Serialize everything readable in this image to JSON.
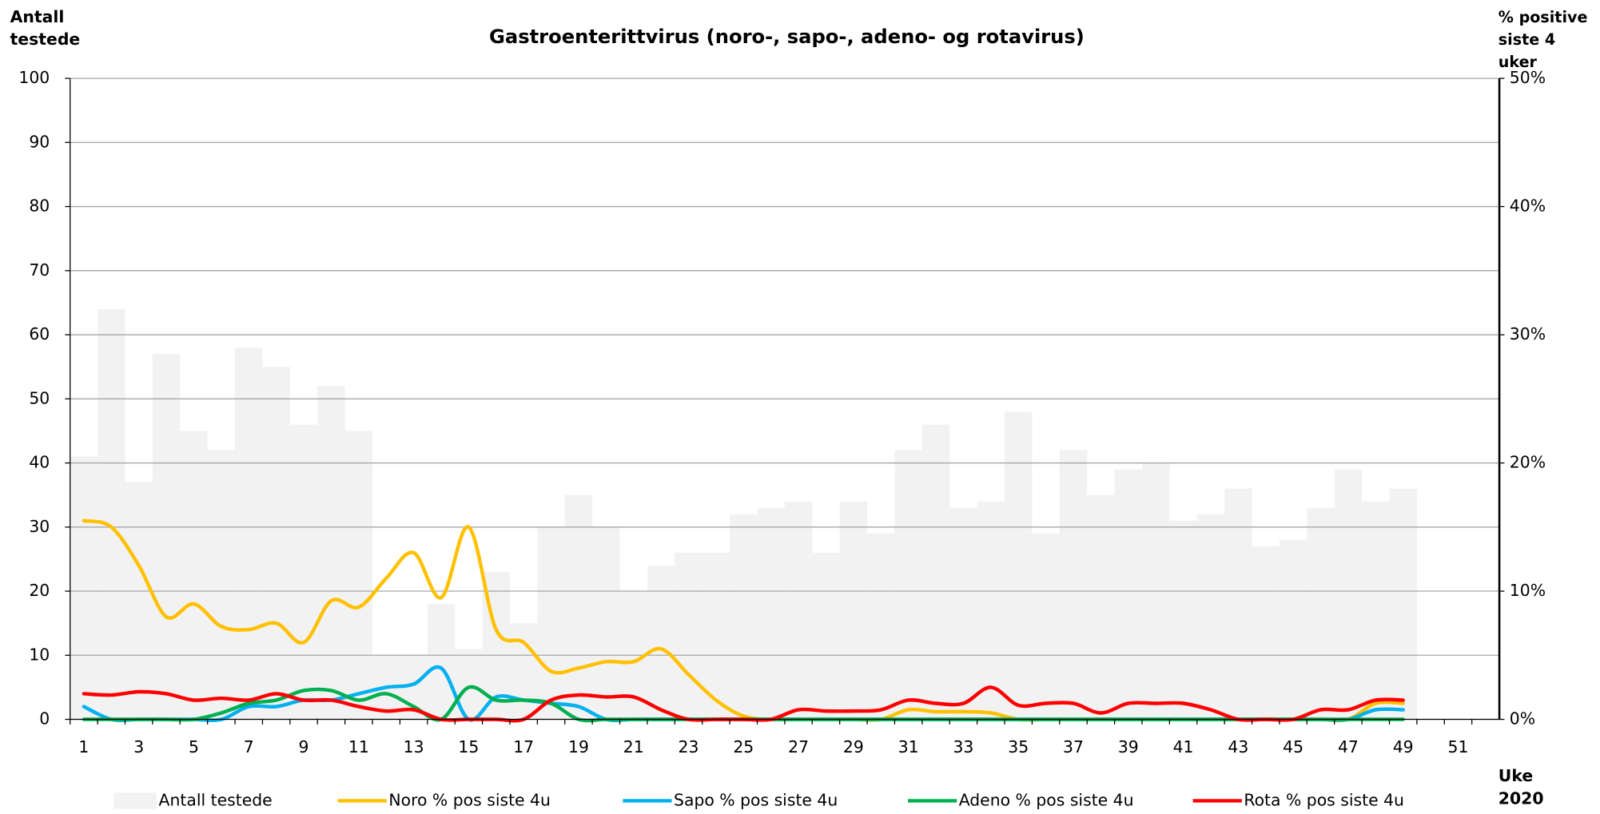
{
  "chart_data": {
    "type": "bar_line",
    "title": "Gastroenterittvirus (noro-, sapo-, adeno- og rotavirus)",
    "y_label": "Antall testede",
    "y2_label": "% positive siste 4 uker",
    "x_label": "Uke 2020",
    "categories": [
      1,
      null,
      3,
      null,
      5,
      null,
      7,
      null,
      9,
      null,
      11,
      null,
      13,
      null,
      15,
      null,
      17,
      null,
      19,
      null,
      21,
      null,
      23,
      null,
      25,
      null,
      27,
      null,
      29,
      null,
      31,
      null,
      33,
      null,
      35,
      null,
      37,
      null,
      39,
      null,
      41,
      null,
      43,
      null,
      45,
      null,
      47,
      null,
      49,
      null,
      51,
      null
    ],
    "ylim": [
      0,
      100
    ],
    "yticks": [
      0,
      10,
      20,
      30,
      40,
      50,
      60,
      70,
      80,
      90,
      100
    ],
    "y2lim": [
      0,
      50
    ],
    "y2ticks": [
      {
        "value": 0,
        "label": "0%"
      },
      {
        "value": 10,
        "label": "10%"
      },
      {
        "value": 20,
        "label": "20%"
      },
      {
        "value": 30,
        "label": "30%"
      },
      {
        "value": 40,
        "label": "40%"
      },
      {
        "value": 50,
        "label": "50%"
      }
    ],
    "grid": true,
    "legend": "bottom",
    "series": [
      {
        "name": "Antall testede",
        "type": "bar",
        "color": "#f2f2f2",
        "values": [
          41,
          64,
          37,
          57,
          45,
          42,
          58,
          55,
          46,
          52,
          45,
          10,
          10,
          18,
          11,
          23,
          15,
          30,
          35,
          30,
          20,
          24,
          26,
          26,
          32,
          33,
          34,
          26,
          34,
          29,
          42,
          46,
          33,
          34,
          48,
          29,
          42,
          35,
          39,
          40,
          31,
          32,
          36,
          27,
          28,
          33,
          39,
          34,
          36,
          null,
          null,
          null
        ]
      },
      {
        "name": "Noro % pos siste 4u",
        "type": "line",
        "axis": "y2",
        "color": "#ffc000",
        "values": [
          15.5,
          15,
          12,
          8,
          9,
          7.25,
          7,
          7.5,
          6,
          9.25,
          8.75,
          11,
          13,
          9.5,
          15,
          7,
          6,
          3.75,
          4,
          4.5,
          4.5,
          5.5,
          3.5,
          1.5,
          0.25,
          0,
          0,
          0,
          0,
          0,
          0.75,
          0.6,
          0.6,
          0.5,
          0,
          0,
          0,
          0,
          0,
          0,
          0,
          0,
          0,
          0,
          0,
          0,
          0,
          1.25,
          1.25,
          null,
          null,
          null
        ]
      },
      {
        "name": "Sapo % pos siste 4u",
        "type": "line",
        "axis": "y2",
        "color": "#00b0f0",
        "values": [
          1,
          0,
          0,
          0,
          0,
          0,
          1,
          1,
          1.5,
          1.5,
          2,
          2.5,
          2.75,
          4,
          0,
          1.75,
          1.5,
          1.25,
          1,
          0,
          0,
          0,
          0,
          0,
          0,
          0,
          0,
          0,
          0,
          0,
          0,
          0,
          0,
          0,
          0,
          0,
          0,
          0,
          0,
          0,
          0,
          0,
          0,
          0,
          0,
          0,
          0,
          0.75,
          0.75,
          null,
          null,
          null
        ]
      },
      {
        "name": "Adeno % pos siste 4u",
        "type": "line",
        "axis": "y2",
        "color": "#00b050",
        "values": [
          0,
          0,
          0,
          0,
          0,
          0.5,
          1.25,
          1.5,
          2.25,
          2.25,
          1.5,
          2,
          1,
          0,
          2.5,
          1.5,
          1.5,
          1.25,
          0,
          0,
          0,
          0,
          0,
          0,
          0,
          0,
          0,
          0,
          0,
          0,
          0,
          0,
          0,
          0,
          0,
          0,
          0,
          0,
          0,
          0,
          0,
          0,
          0,
          0,
          0,
          0,
          0,
          0,
          0,
          null,
          null,
          null
        ]
      },
      {
        "name": "Rota % pos siste 4u",
        "type": "line",
        "axis": "y2",
        "color": "#ff0000",
        "values": [
          2,
          1.9,
          2.15,
          2,
          1.5,
          1.65,
          1.5,
          2,
          1.5,
          1.5,
          1,
          0.65,
          0.75,
          0,
          0,
          0,
          0,
          1.5,
          1.9,
          1.75,
          1.75,
          0.75,
          0,
          0,
          0,
          0,
          0.75,
          0.65,
          0.65,
          0.75,
          1.5,
          1.25,
          1.25,
          2.5,
          1.1,
          1.25,
          1.25,
          0.5,
          1.25,
          1.25,
          1.25,
          0.75,
          0,
          0,
          0,
          0.75,
          0.75,
          1.5,
          1.5,
          null,
          null,
          null
        ]
      }
    ]
  }
}
